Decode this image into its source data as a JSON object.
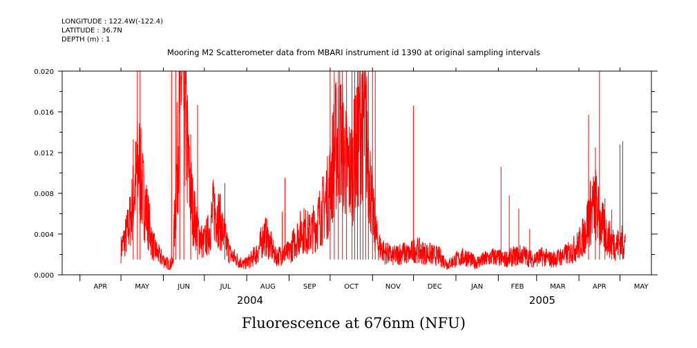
{
  "header": {
    "longitude": "LONGITUDE : 122.4W(-122.4)",
    "latitude": "LATITUDE : 36.7N",
    "depth": "DEPTH (m) : 1"
  },
  "chart_data": {
    "type": "line",
    "title": "Mooring M2 Scatterometer data from MBARI instrument id 1390 at original sampling intervals",
    "xlabel": "Fluorescence at 676nm (NFU)",
    "ylabel": "",
    "ylim": [
      0,
      0.02
    ],
    "y_ticks": [
      "0.000",
      "0.004",
      "0.008",
      "0.012",
      "0.016",
      "0.020"
    ],
    "x_ticks": [
      "APR",
      "MAY",
      "JUN",
      "JUL",
      "AUG",
      "SEP",
      "OCT",
      "NOV",
      "DEC",
      "JAN",
      "FEB",
      "MAR",
      "APR",
      "MAY"
    ],
    "year_labels": [
      "2004",
      "2005"
    ],
    "grid": false,
    "color": "#ff0000",
    "series": [
      {
        "x": [
          "2004-05-01",
          "2004-05-05",
          "2004-05-08",
          "2004-05-11",
          "2004-05-14",
          "2004-05-17",
          "2004-05-20",
          "2004-05-24",
          "2004-05-28",
          "2004-06-01",
          "2004-06-05",
          "2004-06-08",
          "2004-06-11",
          "2004-06-14",
          "2004-06-17",
          "2004-06-20",
          "2004-06-23",
          "2004-06-26",
          "2004-06-30",
          "2004-07-04",
          "2004-07-08",
          "2004-07-12",
          "2004-07-16",
          "2004-07-20",
          "2004-07-25",
          "2004-07-30",
          "2004-08-04",
          "2004-08-09",
          "2004-08-14",
          "2004-08-18",
          "2004-08-22",
          "2004-08-27",
          "2004-09-01",
          "2004-09-06",
          "2004-09-11",
          "2004-09-16",
          "2004-09-21",
          "2004-09-26",
          "2004-09-30",
          "2004-10-04",
          "2004-10-08",
          "2004-10-12",
          "2004-10-16",
          "2004-10-20",
          "2004-10-24",
          "2004-10-28",
          "2004-11-01",
          "2004-11-05",
          "2004-11-10",
          "2004-11-16",
          "2004-11-22",
          "2004-11-28",
          "2004-12-02",
          "2004-12-08",
          "2004-12-14",
          "2004-12-20",
          "2004-12-26",
          "2005-01-01",
          "2005-01-08",
          "2005-01-15",
          "2005-01-22",
          "2005-01-29",
          "2005-02-05",
          "2005-02-12",
          "2005-02-19",
          "2005-02-26",
          "2005-03-05",
          "2005-03-12",
          "2005-03-19",
          "2005-03-26",
          "2005-04-01",
          "2005-04-05",
          "2005-04-09",
          "2005-04-13",
          "2005-04-17",
          "2005-04-21",
          "2005-04-25",
          "2005-04-29",
          "2005-05-03",
          "2005-05-05"
        ],
        "y": [
          0.0025,
          0.004,
          0.0055,
          0.0085,
          0.011,
          0.008,
          0.006,
          0.003,
          0.002,
          0.0015,
          0.001,
          0.0012,
          0.011,
          0.02,
          0.016,
          0.009,
          0.006,
          0.0045,
          0.003,
          0.004,
          0.0065,
          0.0055,
          0.0035,
          0.002,
          0.0015,
          0.001,
          0.0015,
          0.0022,
          0.004,
          0.003,
          0.0018,
          0.002,
          0.0022,
          0.0035,
          0.0045,
          0.004,
          0.005,
          0.0065,
          0.008,
          0.012,
          0.014,
          0.011,
          0.01,
          0.012,
          0.016,
          0.013,
          0.006,
          0.003,
          0.0022,
          0.0018,
          0.0022,
          0.002,
          0.0025,
          0.0022,
          0.002,
          0.0018,
          0.001,
          0.0015,
          0.0018,
          0.0012,
          0.0015,
          0.0018,
          0.0015,
          0.0018,
          0.002,
          0.0015,
          0.0018,
          0.0015,
          0.0018,
          0.0022,
          0.003,
          0.004,
          0.006,
          0.007,
          0.005,
          0.004,
          0.0032,
          0.003,
          0.0032,
          0.003
        ]
      }
    ],
    "spikes": [
      {
        "x": "2004-05-10",
        "y": 0.0133
      },
      {
        "x": "2004-05-13",
        "y": 0.02
      },
      {
        "x": "2004-05-15",
        "y": 0.02
      },
      {
        "x": "2004-06-07",
        "y": 0.02
      },
      {
        "x": "2004-06-10",
        "y": 0.02
      },
      {
        "x": "2004-06-13",
        "y": 0.02
      },
      {
        "x": "2004-06-16",
        "y": 0.02
      },
      {
        "x": "2004-06-21",
        "y": 0.0138
      },
      {
        "x": "2004-06-26",
        "y": 0.0167
      },
      {
        "x": "2004-07-16",
        "y": 0.009
      },
      {
        "x": "2004-08-27",
        "y": 0.0062
      },
      {
        "x": "2004-08-29",
        "y": 0.0095
      },
      {
        "x": "2004-10-01",
        "y": 0.02
      },
      {
        "x": "2004-10-04",
        "y": 0.02
      },
      {
        "x": "2004-10-07",
        "y": 0.02
      },
      {
        "x": "2004-10-10",
        "y": 0.02
      },
      {
        "x": "2004-10-13",
        "y": 0.02
      },
      {
        "x": "2004-10-17",
        "y": 0.02
      },
      {
        "x": "2004-10-19",
        "y": 0.02
      },
      {
        "x": "2004-10-21",
        "y": 0.02
      },
      {
        "x": "2004-10-23",
        "y": 0.02
      },
      {
        "x": "2004-10-25",
        "y": 0.02
      },
      {
        "x": "2004-10-27",
        "y": 0.02
      },
      {
        "x": "2004-10-29",
        "y": 0.02
      },
      {
        "x": "2004-11-01",
        "y": 0.02
      },
      {
        "x": "2004-11-03",
        "y": 0.02
      },
      {
        "x": "2004-12-01",
        "y": 0.0166
      },
      {
        "x": "2005-02-03",
        "y": 0.0106
      },
      {
        "x": "2005-02-09",
        "y": 0.0078
      },
      {
        "x": "2005-02-16",
        "y": 0.0065
      },
      {
        "x": "2005-02-24",
        "y": 0.0045
      },
      {
        "x": "2005-04-08",
        "y": 0.0157
      },
      {
        "x": "2005-04-13",
        "y": 0.0125
      },
      {
        "x": "2005-04-16",
        "y": 0.02
      },
      {
        "x": "2005-04-20",
        "y": 0.0075
      },
      {
        "x": "2005-04-25",
        "y": 0.0064
      },
      {
        "x": "2005-05-01",
        "y": 0.0128
      },
      {
        "x": "2005-05-03",
        "y": 0.0131
      }
    ]
  }
}
